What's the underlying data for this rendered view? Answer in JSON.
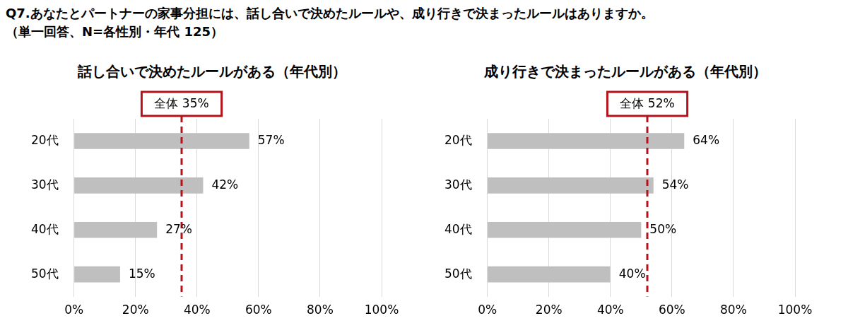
{
  "title": "Q7.あなたとパートナーの家事分担には、話し合いで決めたルールや、成り行きで決まったルールはありますか。",
  "subtitle": "（単一回答、N=各性別・年代 125）",
  "chart_data": [
    {
      "type": "bar",
      "title": "話し合いで決めたルールがある（年代別）",
      "orientation": "horizontal",
      "categories": [
        "20代",
        "30代",
        "40代",
        "50代"
      ],
      "values": [
        57,
        42,
        27,
        15
      ],
      "value_labels": [
        "57%",
        "42%",
        "27%",
        "15%"
      ],
      "data_labels": true,
      "color": "#bfbfbf",
      "xlim": [
        0,
        100
      ],
      "xticks": [
        {
          "value": 0,
          "label": "0%"
        },
        {
          "value": 20,
          "label": "20%"
        },
        {
          "value": 40,
          "label": "40%"
        },
        {
          "value": 60,
          "label": "60%"
        },
        {
          "value": 80,
          "label": "80%"
        },
        {
          "value": 100,
          "label": "100%"
        }
      ],
      "grid": true,
      "reference": {
        "value": 35,
        "label": "全体 35%"
      }
    },
    {
      "type": "bar",
      "title": "成り行きで決まったルールがある（年代別）",
      "orientation": "horizontal",
      "categories": [
        "20代",
        "30代",
        "40代",
        "50代"
      ],
      "values": [
        64,
        54,
        50,
        40
      ],
      "value_labels": [
        "64%",
        "54%",
        "50%",
        "40%"
      ],
      "data_labels": true,
      "color": "#bfbfbf",
      "xlim": [
        0,
        100
      ],
      "xticks": [
        {
          "value": 0,
          "label": "0%"
        },
        {
          "value": 20,
          "label": "20%"
        },
        {
          "value": 40,
          "label": "40%"
        },
        {
          "value": 60,
          "label": "60%"
        },
        {
          "value": 80,
          "label": "80%"
        },
        {
          "value": 100,
          "label": "100%"
        }
      ],
      "grid": true,
      "reference": {
        "value": 52,
        "label": "全体 52%"
      }
    }
  ]
}
